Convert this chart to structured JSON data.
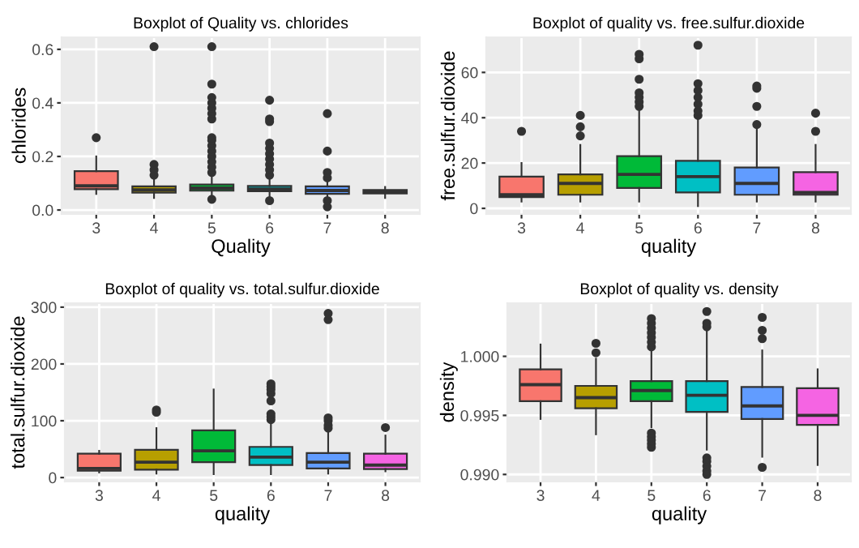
{
  "chart_data": [
    {
      "type": "box",
      "title": "Boxplot of Quality vs. chlorides",
      "xlabel": "Quality",
      "ylabel": "chlorides",
      "categories": [
        "3",
        "4",
        "5",
        "6",
        "7",
        "8"
      ],
      "colors": [
        "#f8766d",
        "#b79f00",
        "#00ba38",
        "#00bfc4",
        "#619cff",
        "#f564e3"
      ],
      "boxes": [
        {
          "low": 0.06,
          "q1": 0.078,
          "median": 0.09,
          "q3": 0.145,
          "high": 0.2,
          "outliers": [
            0.27
          ]
        },
        {
          "low": 0.045,
          "q1": 0.065,
          "median": 0.075,
          "q3": 0.088,
          "high": 0.12,
          "outliers": [
            0.13,
            0.15,
            0.17,
            0.61
          ]
        },
        {
          "low": 0.045,
          "q1": 0.072,
          "median": 0.082,
          "q3": 0.095,
          "high": 0.125,
          "outliers": [
            0.04,
            0.14,
            0.16,
            0.18,
            0.2,
            0.22,
            0.24,
            0.26,
            0.27,
            0.34,
            0.36,
            0.38,
            0.4,
            0.42,
            0.47,
            0.61
          ]
        },
        {
          "low": 0.04,
          "q1": 0.07,
          "median": 0.078,
          "q3": 0.09,
          "high": 0.12,
          "outliers": [
            0.035,
            0.13,
            0.15,
            0.17,
            0.19,
            0.21,
            0.23,
            0.25,
            0.33,
            0.34,
            0.41
          ]
        },
        {
          "low": 0.04,
          "q1": 0.06,
          "median": 0.073,
          "q3": 0.088,
          "high": 0.11,
          "outliers": [
            0.012,
            0.035,
            0.12,
            0.14,
            0.22,
            0.36
          ]
        },
        {
          "low": 0.045,
          "q1": 0.062,
          "median": 0.068,
          "q3": 0.075,
          "high": 0.086
        }
      ],
      "ylim": [
        -0.015,
        0.645
      ],
      "yticks": [
        {
          "value": 0,
          "label": "0.0"
        },
        {
          "value": 0.2,
          "label": "0.2"
        },
        {
          "value": 0.4,
          "label": "0.4"
        },
        {
          "value": 0.6,
          "label": "0.6"
        }
      ],
      "grid": true
    },
    {
      "type": "box",
      "title": "Boxplot of quality vs. free.sulfur.dioxide",
      "xlabel": "quality",
      "ylabel": "free.sulfur.dioxide",
      "categories": [
        "3",
        "4",
        "5",
        "6",
        "7",
        "8"
      ],
      "colors": [
        "#f8766d",
        "#b79f00",
        "#00ba38",
        "#00bfc4",
        "#619cff",
        "#f564e3"
      ],
      "boxes": [
        {
          "low": 3,
          "q1": 5,
          "median": 6,
          "q3": 14,
          "high": 20,
          "outliers": [
            34
          ]
        },
        {
          "low": 3,
          "q1": 6,
          "median": 11,
          "q3": 15,
          "high": 28,
          "outliers": [
            32,
            36,
            41
          ]
        },
        {
          "low": 3,
          "q1": 9,
          "median": 15,
          "q3": 23,
          "high": 44,
          "outliers": [
            45,
            47,
            49,
            51,
            57,
            66,
            68
          ]
        },
        {
          "low": 1,
          "q1": 7,
          "median": 14,
          "q3": 21,
          "high": 40,
          "outliers": [
            41,
            43,
            46,
            49,
            52,
            55,
            72
          ]
        },
        {
          "low": 3,
          "q1": 6,
          "median": 11,
          "q3": 18,
          "high": 35,
          "outliers": [
            37,
            45,
            53,
            54
          ]
        },
        {
          "low": 3,
          "q1": 6,
          "median": 7,
          "q3": 16,
          "high": 28,
          "outliers": [
            34,
            42
          ]
        }
      ],
      "ylim": [
        -2.5,
        75.5
      ],
      "yticks": [
        0,
        20,
        40,
        60
      ],
      "grid": true
    },
    {
      "type": "box",
      "title": "Boxplot of quality vs. total.sulfur.dioxide",
      "xlabel": "quality",
      "ylabel": "total.sulfur.dioxide",
      "categories": [
        "3",
        "4",
        "5",
        "6",
        "7",
        "8"
      ],
      "colors": [
        "#f8766d",
        "#b79f00",
        "#00ba38",
        "#00bfc4",
        "#619cff",
        "#f564e3"
      ],
      "boxes": [
        {
          "low": 9,
          "q1": 12,
          "median": 16,
          "q3": 42,
          "high": 47
        },
        {
          "low": 7,
          "q1": 14,
          "median": 27,
          "q3": 49,
          "high": 87,
          "outliers": [
            115,
            119
          ]
        },
        {
          "low": 6,
          "q1": 27,
          "median": 47,
          "q3": 83,
          "high": 155
        },
        {
          "low": 6,
          "q1": 22,
          "median": 36,
          "q3": 54,
          "high": 100,
          "outliers": [
            102,
            107,
            112,
            135,
            148,
            155,
            160,
            165
          ]
        },
        {
          "low": 7,
          "q1": 16,
          "median": 27,
          "q3": 43,
          "high": 82,
          "outliers": [
            87,
            92,
            100,
            105,
            278,
            289
          ]
        },
        {
          "low": 11,
          "q1": 15,
          "median": 22,
          "q3": 42,
          "high": 74,
          "outliers": [
            88
          ]
        }
      ],
      "ylim": [
        -7,
        307
      ],
      "yticks": [
        0,
        100,
        200,
        300
      ],
      "grid": true
    },
    {
      "type": "box",
      "title": "Boxplot of quality vs. density",
      "xlabel": "quality",
      "ylabel": "density",
      "categories": [
        "3",
        "4",
        "5",
        "6",
        "7",
        "8"
      ],
      "colors": [
        "#f8766d",
        "#b79f00",
        "#00ba38",
        "#00bfc4",
        "#619cff",
        "#f564e3"
      ],
      "boxes": [
        {
          "low": 0.9947,
          "q1": 0.9962,
          "median": 0.9976,
          "q3": 0.9989,
          "high": 1.001
        },
        {
          "low": 0.9934,
          "q1": 0.9956,
          "median": 0.9965,
          "q3": 0.9975,
          "high": 0.9998,
          "outliers": [
            1.0003,
            1.0011
          ]
        },
        {
          "low": 0.994,
          "q1": 0.9962,
          "median": 0.9971,
          "q3": 0.9979,
          "high": 1.0005,
          "outliers": [
            0.9923,
            0.9926,
            0.9929,
            0.9932,
            0.9935,
            1.0008,
            1.0012,
            1.0016,
            1.002,
            1.0024,
            1.0028,
            1.0032
          ]
        },
        {
          "low": 0.9921,
          "q1": 0.9953,
          "median": 0.9967,
          "q3": 0.9979,
          "high": 1.0022,
          "outliers": [
            0.99,
            0.9903,
            0.9907,
            0.9911,
            0.9914,
            1.0025,
            1.0028,
            1.0038
          ]
        },
        {
          "low": 0.9915,
          "q1": 0.9947,
          "median": 0.9958,
          "q3": 0.9974,
          "high": 1.0005,
          "outliers": [
            0.9906,
            1.0015,
            1.0022,
            1.0033
          ]
        },
        {
          "low": 0.9908,
          "q1": 0.9942,
          "median": 0.995,
          "q3": 0.9973,
          "high": 0.9989
        }
      ],
      "ylim": [
        0.9894,
        1.0045
      ],
      "yticks": [
        {
          "value": 0.99,
          "label": "0.990"
        },
        {
          "value": 0.995,
          "label": "0.995"
        },
        {
          "value": 1.0,
          "label": "1.000"
        }
      ],
      "grid": true
    }
  ]
}
